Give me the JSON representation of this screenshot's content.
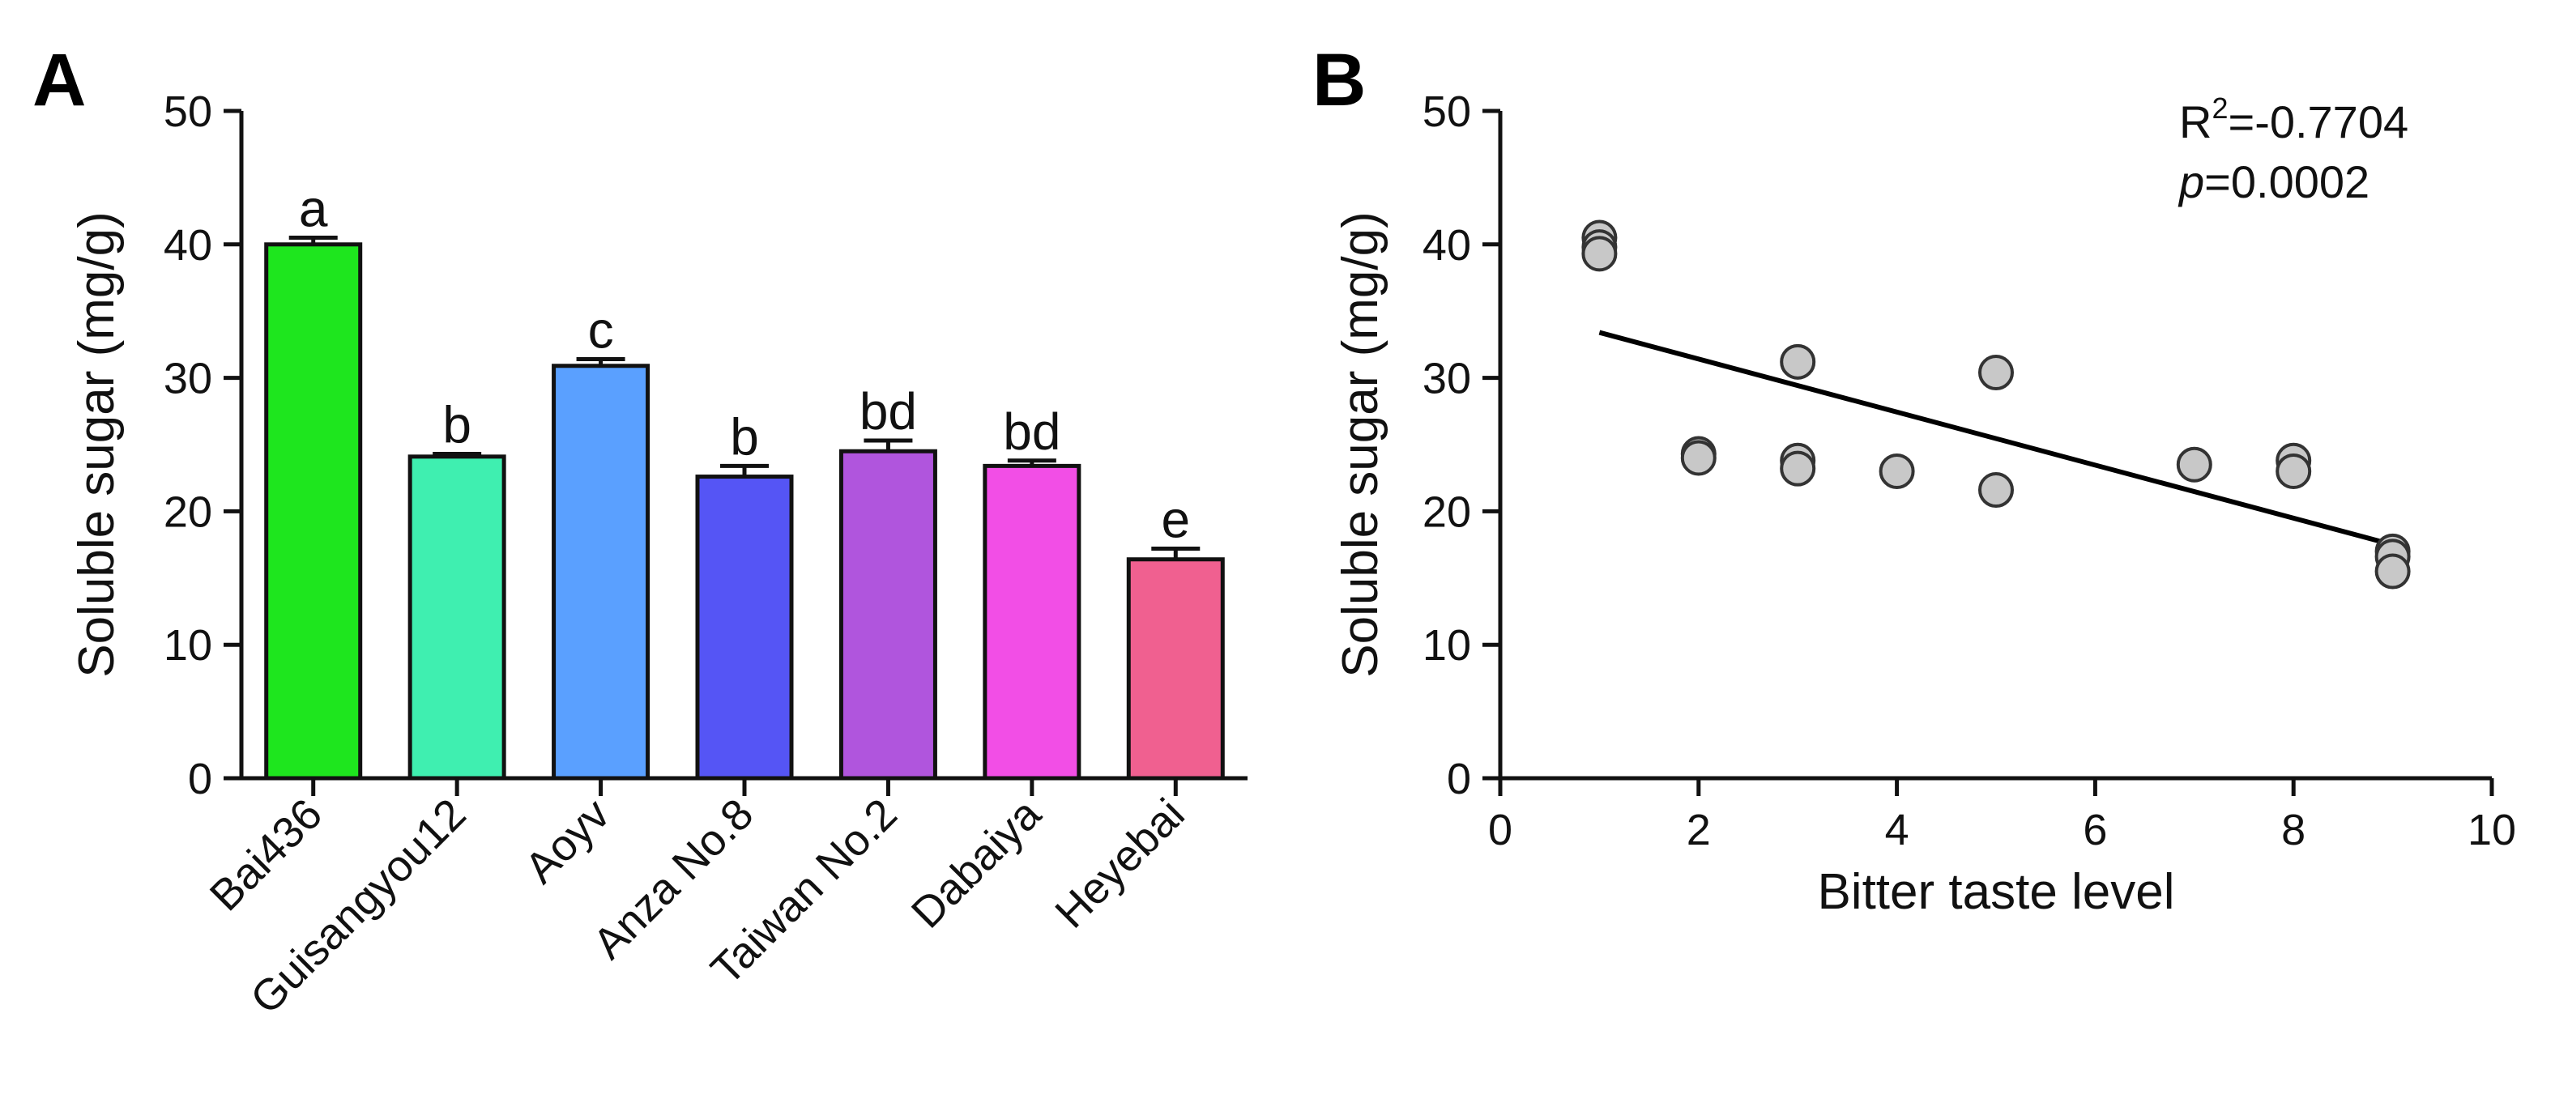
{
  "chart_data": [
    {
      "type": "bar",
      "panel": "A",
      "title": "",
      "xlabel": "",
      "ylabel": "Soluble sugar (mg/g)",
      "ylim": [
        0,
        50
      ],
      "yticks": [
        0,
        10,
        20,
        30,
        40,
        50
      ],
      "categories": [
        "Bai436",
        "Guisangyou12",
        "Aoyv",
        "Anza No.8",
        "Taiwan No.2",
        "Dabaiya",
        "Heyebai"
      ],
      "values": [
        40.0,
        24.1,
        30.9,
        22.6,
        24.5,
        23.4,
        16.4
      ],
      "errors": [
        0.5,
        0.2,
        0.5,
        0.8,
        0.8,
        0.4,
        0.8
      ],
      "significance": [
        "a",
        "b",
        "c",
        "b",
        "bd",
        "bd",
        "e"
      ],
      "colors": [
        "#1ee61e",
        "#3fefb0",
        "#5aa0ff",
        "#5555f5",
        "#b055dd",
        "#f24ee6",
        "#f06090"
      ]
    },
    {
      "type": "scatter",
      "panel": "B",
      "title": "",
      "xlabel": "Bitter taste level",
      "ylabel": "Soluble sugar (mg/g)",
      "xlim": [
        0,
        10
      ],
      "ylim": [
        0,
        50
      ],
      "xticks": [
        0,
        2,
        4,
        6,
        8,
        10
      ],
      "yticks": [
        0,
        10,
        20,
        30,
        40,
        50
      ],
      "points": [
        {
          "x": 1,
          "y": 40.5
        },
        {
          "x": 1,
          "y": 39.8
        },
        {
          "x": 1,
          "y": 39.3
        },
        {
          "x": 2,
          "y": 24.3
        },
        {
          "x": 2,
          "y": 24.0
        },
        {
          "x": 3,
          "y": 31.2
        },
        {
          "x": 3,
          "y": 23.8
        },
        {
          "x": 3,
          "y": 23.2
        },
        {
          "x": 4,
          "y": 23.0
        },
        {
          "x": 5,
          "y": 30.4
        },
        {
          "x": 5,
          "y": 21.6
        },
        {
          "x": 7,
          "y": 23.5
        },
        {
          "x": 8,
          "y": 23.8
        },
        {
          "x": 8,
          "y": 23.0
        },
        {
          "x": 9,
          "y": 17.0
        },
        {
          "x": 9,
          "y": 16.6
        },
        {
          "x": 9,
          "y": 15.5
        }
      ],
      "fit_line": {
        "x": [
          1,
          9
        ],
        "y": [
          33.4,
          17.5
        ]
      },
      "annotations": {
        "r2_prefix": "R",
        "r2_sup": "2",
        "r2_value": "=-0.7704",
        "p_prefix": "p",
        "p_value": "=0.0002"
      }
    }
  ]
}
